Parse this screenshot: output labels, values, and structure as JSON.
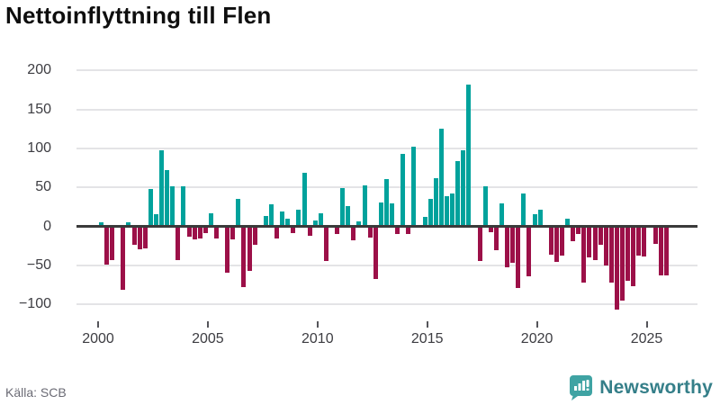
{
  "title": "Nettoinflyttning till Flen",
  "source": "Källa: SCB",
  "brand": {
    "name": "Newsworthy"
  },
  "colors": {
    "positive": "#00a29c",
    "negative": "#9c1048",
    "grid": "#e4e4e6",
    "zero_axis": "#3a3a3a",
    "tick_text": "#3d3d42",
    "brand_teal": "#3fa3a3",
    "brand_text": "#357f89"
  },
  "chart_data": {
    "type": "bar",
    "title": "Nettoinflyttning till Flen",
    "period": "quarterly",
    "start_year": 2000,
    "x_tick_labels": [
      "2000",
      "2005",
      "2010",
      "2015",
      "2020",
      "2025"
    ],
    "y_ticks": [
      200,
      150,
      100,
      50,
      0,
      -50,
      -100
    ],
    "y_tick_labels": [
      "200",
      "150",
      "100",
      "50",
      "0",
      "−50",
      "−100"
    ],
    "ylim": [
      -125,
      220
    ],
    "grid": true,
    "values": [
      5,
      -47,
      -41,
      0,
      -79,
      5,
      -22,
      -28,
      -26,
      48,
      16,
      98,
      72,
      52,
      -41,
      51,
      -11,
      -15,
      -14,
      -7,
      17,
      -14,
      0,
      -58,
      -15,
      35,
      -76,
      -55,
      -22,
      2,
      13,
      28,
      -14,
      19,
      10,
      -7,
      21,
      69,
      -10,
      8,
      17,
      -43,
      0,
      -8,
      49,
      26,
      -16,
      7,
      53,
      -12,
      -65,
      31,
      61,
      30,
      -8,
      93,
      -8,
      102,
      0,
      12,
      35,
      62,
      125,
      39,
      42,
      84,
      98,
      182,
      0,
      -43,
      51,
      -6,
      -29,
      30,
      -51,
      -45,
      -77,
      42,
      -62,
      16,
      22,
      0,
      -34,
      -44,
      -35,
      10,
      -17,
      -8,
      -70,
      -38,
      -41,
      -22,
      -48,
      -70,
      -105,
      -93,
      -68,
      -75,
      -35,
      -37,
      0,
      -20,
      -61,
      -61
    ]
  }
}
